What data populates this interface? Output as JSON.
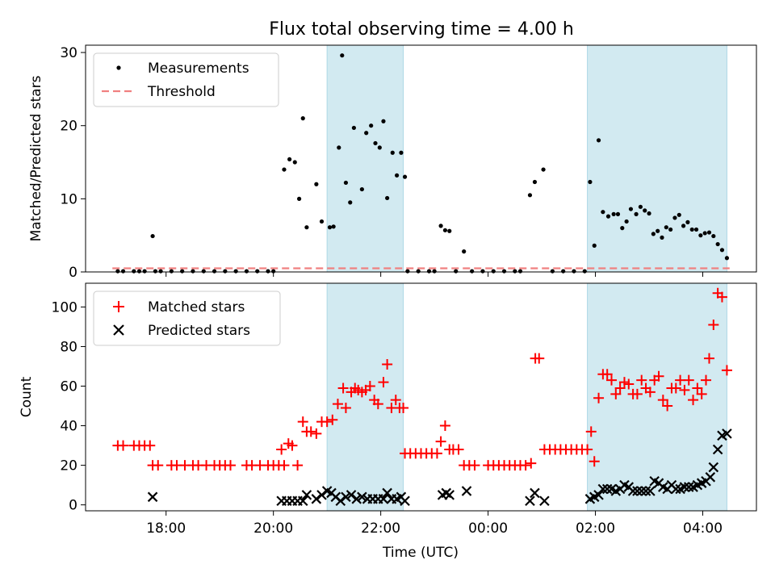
{
  "title": "Flux total observing time = 4.00 h",
  "xlabel": "Time (UTC)",
  "xticks": [
    {
      "t": 18.0,
      "label": "18:00"
    },
    {
      "t": 20.0,
      "label": "20:00"
    },
    {
      "t": 22.0,
      "label": "22:00"
    },
    {
      "t": 24.0,
      "label": "00:00"
    },
    {
      "t": 26.0,
      "label": "02:00"
    },
    {
      "t": 28.0,
      "label": "04:00"
    }
  ],
  "xlim": [
    16.5,
    29.0
  ],
  "shaded_intervals": [
    [
      21.0,
      22.42
    ],
    [
      25.85,
      28.45
    ]
  ],
  "colors": {
    "shade": "#add8e6",
    "matched": "#ff0000",
    "predicted": "#000000",
    "threshold": "#f08080",
    "measurement": "#000000"
  },
  "top_panel": {
    "ylabel": "Matched/Predicted stars",
    "ylim": [
      0,
      31
    ],
    "yticks": [
      0,
      10,
      20,
      30
    ],
    "threshold": 0.5,
    "legend": {
      "measurements": "Measurements",
      "threshold": "Threshold"
    }
  },
  "bottom_panel": {
    "ylabel": "Count",
    "ylim": [
      -3,
      112
    ],
    "yticks": [
      0,
      20,
      40,
      60,
      80,
      100
    ],
    "legend": {
      "matched": "Matched stars",
      "predicted": "Predicted stars"
    }
  },
  "chart_data": {
    "type": "scatter",
    "title": "Flux total observing time = 4.00 h",
    "xlabel": "Time (UTC)",
    "series": [
      {
        "name": "Measurements",
        "panel": "top",
        "points": [
          [
            17.1,
            0.1
          ],
          [
            17.2,
            0.1
          ],
          [
            17.4,
            0.1
          ],
          [
            17.5,
            0.1
          ],
          [
            17.6,
            0.1
          ],
          [
            17.75,
            4.9
          ],
          [
            17.8,
            0.1
          ],
          [
            17.9,
            0.1
          ],
          [
            18.1,
            0.1
          ],
          [
            18.3,
            0.1
          ],
          [
            18.5,
            0.1
          ],
          [
            18.7,
            0.1
          ],
          [
            18.9,
            0.1
          ],
          [
            19.1,
            0.1
          ],
          [
            19.3,
            0.1
          ],
          [
            19.5,
            0.1
          ],
          [
            19.7,
            0.1
          ],
          [
            19.9,
            0.1
          ],
          [
            20.0,
            0.1
          ],
          [
            20.2,
            14.0
          ],
          [
            20.3,
            15.4
          ],
          [
            20.4,
            15.0
          ],
          [
            20.48,
            10.0
          ],
          [
            20.55,
            21.0
          ],
          [
            20.62,
            6.1
          ],
          [
            20.8,
            12.0
          ],
          [
            20.9,
            6.9
          ],
          [
            21.05,
            6.1
          ],
          [
            21.12,
            6.2
          ],
          [
            21.22,
            17.0
          ],
          [
            21.28,
            29.6
          ],
          [
            21.35,
            12.2
          ],
          [
            21.43,
            9.5
          ],
          [
            21.5,
            19.7
          ],
          [
            21.65,
            11.3
          ],
          [
            21.73,
            19.0
          ],
          [
            21.82,
            20.0
          ],
          [
            21.9,
            17.6
          ],
          [
            21.98,
            17.0
          ],
          [
            22.05,
            20.6
          ],
          [
            22.12,
            10.1
          ],
          [
            22.22,
            16.3
          ],
          [
            22.3,
            13.2
          ],
          [
            22.38,
            16.3
          ],
          [
            22.45,
            13.0
          ],
          [
            22.5,
            0.1
          ],
          [
            22.7,
            0.1
          ],
          [
            22.9,
            0.1
          ],
          [
            23.0,
            0.1
          ],
          [
            23.12,
            6.3
          ],
          [
            23.2,
            5.7
          ],
          [
            23.28,
            5.6
          ],
          [
            23.4,
            0.1
          ],
          [
            23.55,
            2.8
          ],
          [
            23.7,
            0.1
          ],
          [
            23.9,
            0.1
          ],
          [
            24.1,
            0.1
          ],
          [
            24.3,
            0.1
          ],
          [
            24.5,
            0.1
          ],
          [
            24.6,
            0.1
          ],
          [
            24.78,
            10.5
          ],
          [
            24.87,
            12.3
          ],
          [
            25.03,
            14.0
          ],
          [
            25.2,
            0.1
          ],
          [
            25.4,
            0.1
          ],
          [
            25.6,
            0.1
          ],
          [
            25.8,
            0.1
          ],
          [
            25.9,
            12.3
          ],
          [
            25.98,
            3.6
          ],
          [
            26.06,
            18.0
          ],
          [
            26.14,
            8.2
          ],
          [
            26.24,
            7.6
          ],
          [
            26.34,
            7.9
          ],
          [
            26.42,
            7.9
          ],
          [
            26.5,
            6.0
          ],
          [
            26.58,
            6.9
          ],
          [
            26.66,
            8.6
          ],
          [
            26.76,
            7.9
          ],
          [
            26.84,
            8.9
          ],
          [
            26.92,
            8.4
          ],
          [
            27.0,
            8.0
          ],
          [
            27.08,
            5.2
          ],
          [
            27.16,
            5.6
          ],
          [
            27.24,
            4.7
          ],
          [
            27.32,
            6.1
          ],
          [
            27.4,
            5.8
          ],
          [
            27.48,
            7.4
          ],
          [
            27.56,
            7.8
          ],
          [
            27.64,
            6.3
          ],
          [
            27.72,
            6.8
          ],
          [
            27.8,
            5.8
          ],
          [
            27.88,
            5.8
          ],
          [
            27.96,
            5.0
          ],
          [
            28.04,
            5.3
          ],
          [
            28.12,
            5.4
          ],
          [
            28.2,
            4.9
          ],
          [
            28.28,
            3.8
          ],
          [
            28.36,
            3.0
          ],
          [
            28.45,
            1.9
          ]
        ]
      },
      {
        "name": "Threshold",
        "panel": "top",
        "style": "dashed",
        "points": [
          [
            17.0,
            0.5
          ],
          [
            28.5,
            0.5
          ]
        ]
      },
      {
        "name": "Matched stars",
        "panel": "bottom",
        "points": [
          [
            17.1,
            30
          ],
          [
            17.2,
            30
          ],
          [
            17.4,
            30
          ],
          [
            17.5,
            30
          ],
          [
            17.6,
            30
          ],
          [
            17.7,
            30
          ],
          [
            17.75,
            20
          ],
          [
            17.85,
            20
          ],
          [
            18.1,
            20
          ],
          [
            18.2,
            20
          ],
          [
            18.35,
            20
          ],
          [
            18.5,
            20
          ],
          [
            18.6,
            20
          ],
          [
            18.75,
            20
          ],
          [
            18.9,
            20
          ],
          [
            19.0,
            20
          ],
          [
            19.1,
            20
          ],
          [
            19.2,
            20
          ],
          [
            19.5,
            20
          ],
          [
            19.6,
            20
          ],
          [
            19.75,
            20
          ],
          [
            19.9,
            20
          ],
          [
            20.0,
            20
          ],
          [
            20.1,
            20
          ],
          [
            20.2,
            20
          ],
          [
            20.15,
            28
          ],
          [
            20.28,
            31
          ],
          [
            20.35,
            30
          ],
          [
            20.45,
            20
          ],
          [
            20.55,
            42
          ],
          [
            20.62,
            37
          ],
          [
            20.7,
            37
          ],
          [
            20.8,
            36
          ],
          [
            20.9,
            42
          ],
          [
            21.0,
            42
          ],
          [
            21.1,
            43
          ],
          [
            21.2,
            51
          ],
          [
            21.3,
            59
          ],
          [
            21.35,
            49
          ],
          [
            21.45,
            57
          ],
          [
            21.52,
            59
          ],
          [
            21.58,
            58
          ],
          [
            21.65,
            57
          ],
          [
            21.72,
            58
          ],
          [
            21.8,
            60
          ],
          [
            21.88,
            53
          ],
          [
            21.95,
            51
          ],
          [
            22.05,
            62
          ],
          [
            22.12,
            71
          ],
          [
            22.2,
            49
          ],
          [
            22.28,
            53
          ],
          [
            22.35,
            49
          ],
          [
            22.42,
            49
          ],
          [
            22.45,
            26
          ],
          [
            22.55,
            26
          ],
          [
            22.65,
            26
          ],
          [
            22.75,
            26
          ],
          [
            22.85,
            26
          ],
          [
            22.95,
            26
          ],
          [
            23.05,
            26
          ],
          [
            23.12,
            32
          ],
          [
            23.2,
            40
          ],
          [
            23.28,
            28
          ],
          [
            23.35,
            28
          ],
          [
            23.45,
            28
          ],
          [
            23.55,
            20
          ],
          [
            23.65,
            20
          ],
          [
            23.75,
            20
          ],
          [
            24.0,
            20
          ],
          [
            24.1,
            20
          ],
          [
            24.2,
            20
          ],
          [
            24.3,
            20
          ],
          [
            24.4,
            20
          ],
          [
            24.5,
            20
          ],
          [
            24.6,
            20
          ],
          [
            24.7,
            20
          ],
          [
            24.8,
            21
          ],
          [
            24.88,
            74
          ],
          [
            24.95,
            74
          ],
          [
            25.05,
            28
          ],
          [
            25.15,
            28
          ],
          [
            25.25,
            28
          ],
          [
            25.35,
            28
          ],
          [
            25.45,
            28
          ],
          [
            25.55,
            28
          ],
          [
            25.65,
            28
          ],
          [
            25.75,
            28
          ],
          [
            25.85,
            28
          ],
          [
            25.92,
            37
          ],
          [
            25.98,
            22
          ],
          [
            26.06,
            54
          ],
          [
            26.14,
            66
          ],
          [
            26.22,
            66
          ],
          [
            26.3,
            63
          ],
          [
            26.38,
            56
          ],
          [
            26.46,
            59
          ],
          [
            26.54,
            62
          ],
          [
            26.62,
            61
          ],
          [
            26.7,
            56
          ],
          [
            26.78,
            56
          ],
          [
            26.86,
            63
          ],
          [
            26.94,
            59
          ],
          [
            27.02,
            57
          ],
          [
            27.1,
            63
          ],
          [
            27.18,
            65
          ],
          [
            27.26,
            53
          ],
          [
            27.34,
            50
          ],
          [
            27.42,
            59
          ],
          [
            27.5,
            59
          ],
          [
            27.58,
            63
          ],
          [
            27.66,
            58
          ],
          [
            27.74,
            63
          ],
          [
            27.82,
            53
          ],
          [
            27.9,
            59
          ],
          [
            27.98,
            56
          ],
          [
            28.06,
            63
          ],
          [
            28.12,
            74
          ],
          [
            28.2,
            91
          ],
          [
            28.28,
            107
          ],
          [
            28.36,
            105
          ],
          [
            28.45,
            68
          ]
        ]
      },
      {
        "name": "Predicted stars",
        "panel": "bottom",
        "points": [
          [
            17.75,
            4
          ],
          [
            20.15,
            2
          ],
          [
            20.25,
            2
          ],
          [
            20.35,
            2
          ],
          [
            20.45,
            2
          ],
          [
            20.55,
            2
          ],
          [
            20.62,
            5
          ],
          [
            20.8,
            3
          ],
          [
            20.9,
            5
          ],
          [
            21.0,
            7
          ],
          [
            21.08,
            6
          ],
          [
            21.16,
            4
          ],
          [
            21.25,
            2
          ],
          [
            21.35,
            4
          ],
          [
            21.45,
            5
          ],
          [
            21.55,
            3
          ],
          [
            21.65,
            4
          ],
          [
            21.75,
            3
          ],
          [
            21.85,
            3
          ],
          [
            21.95,
            3
          ],
          [
            22.05,
            3
          ],
          [
            22.12,
            6
          ],
          [
            22.2,
            3
          ],
          [
            22.3,
            3
          ],
          [
            22.38,
            4
          ],
          [
            22.45,
            2
          ],
          [
            23.15,
            5
          ],
          [
            23.22,
            6
          ],
          [
            23.28,
            5
          ],
          [
            23.6,
            7
          ],
          [
            24.78,
            2
          ],
          [
            24.87,
            6
          ],
          [
            25.05,
            2
          ],
          [
            25.9,
            3
          ],
          [
            25.98,
            4
          ],
          [
            26.06,
            5
          ],
          [
            26.14,
            8
          ],
          [
            26.22,
            8
          ],
          [
            26.3,
            8
          ],
          [
            26.38,
            7
          ],
          [
            26.46,
            8
          ],
          [
            26.54,
            10
          ],
          [
            26.62,
            9
          ],
          [
            26.7,
            7
          ],
          [
            26.78,
            7
          ],
          [
            26.86,
            7
          ],
          [
            26.94,
            7
          ],
          [
            27.02,
            7
          ],
          [
            27.1,
            12
          ],
          [
            27.18,
            11
          ],
          [
            27.26,
            9
          ],
          [
            27.34,
            8
          ],
          [
            27.42,
            10
          ],
          [
            27.5,
            8
          ],
          [
            27.58,
            8
          ],
          [
            27.66,
            9
          ],
          [
            27.74,
            9
          ],
          [
            27.82,
            9
          ],
          [
            27.9,
            10
          ],
          [
            27.98,
            11
          ],
          [
            28.06,
            12
          ],
          [
            28.14,
            14
          ],
          [
            28.2,
            19
          ],
          [
            28.28,
            28
          ],
          [
            28.36,
            35
          ],
          [
            28.45,
            36
          ]
        ]
      }
    ]
  }
}
